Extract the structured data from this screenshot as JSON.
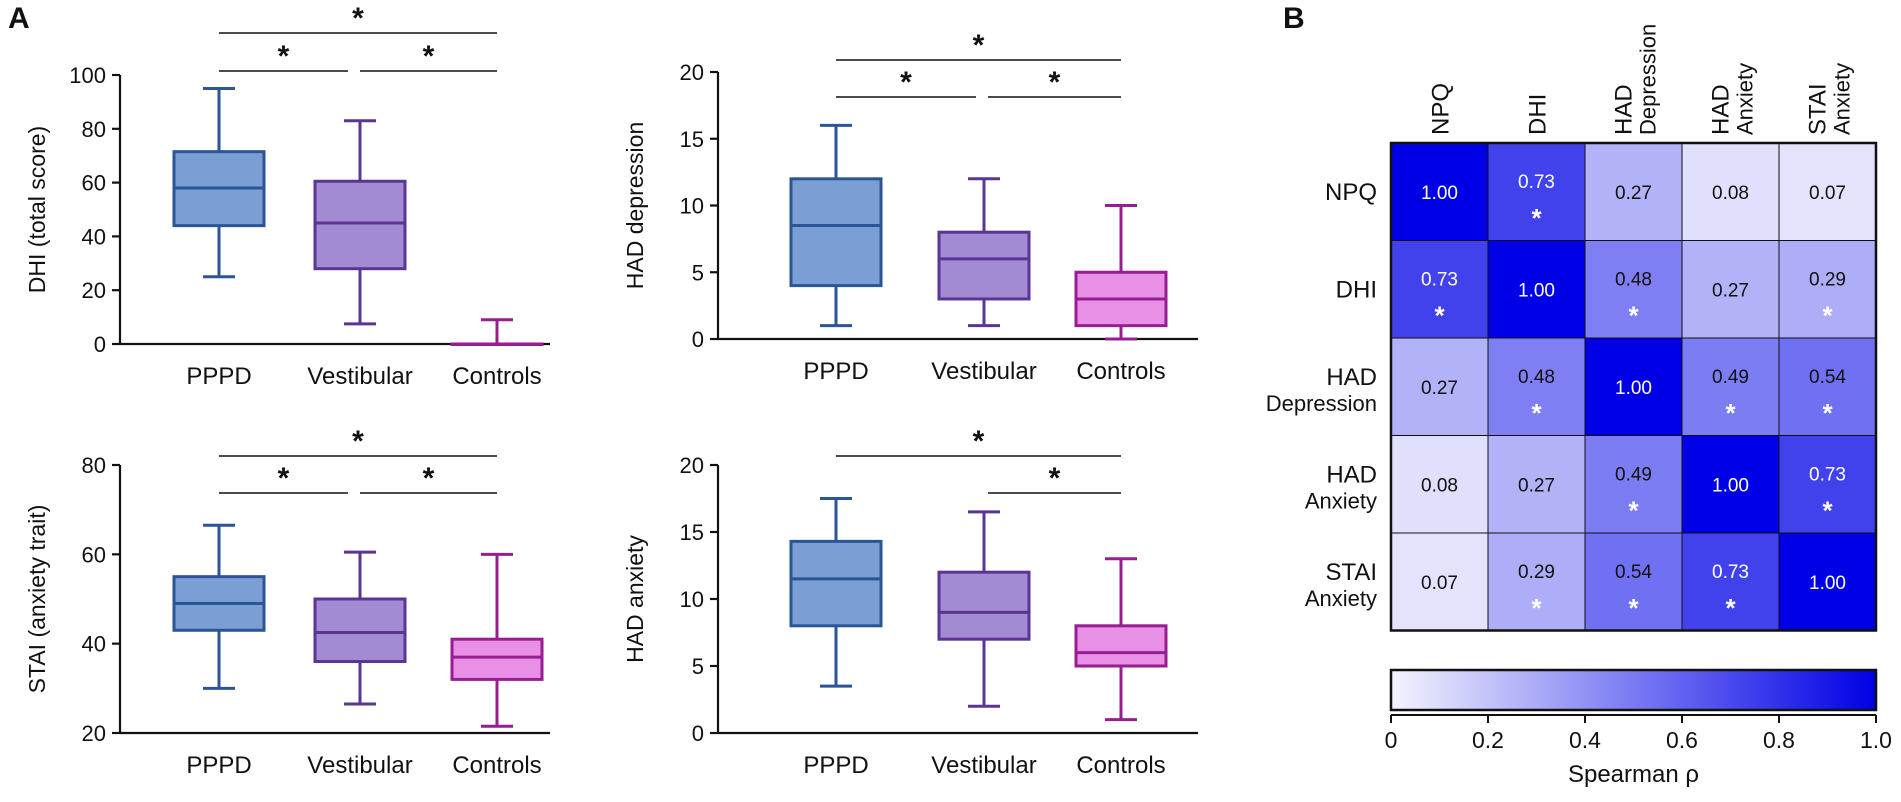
{
  "panel_labels": {
    "a": "A",
    "b": "B"
  },
  "colors": {
    "PPPD": {
      "fill": "#7b9fd4",
      "stroke": "#2b5596"
    },
    "Vestibular": {
      "fill": "#a28bd3",
      "stroke": "#5a3594"
    },
    "Controls": {
      "fill": "#e890e6",
      "stroke": "#971e92"
    },
    "heat_low": "#f4f4ff",
    "heat_high": "#0000e6"
  },
  "chart_data": [
    {
      "id": "dhi",
      "type": "box",
      "title": "",
      "xlabel": "",
      "ylabel": "DHI (total score)",
      "ylim": [
        0,
        100
      ],
      "yticks": [
        0,
        20,
        40,
        60,
        80,
        100
      ],
      "tick_labels": [
        "0",
        "20",
        "40",
        "60",
        "80",
        "100"
      ],
      "categories": [
        "PPPD",
        "Vestibular",
        "Controls"
      ],
      "boxes": [
        {
          "min": 25,
          "q1": 44,
          "median": 58,
          "q3": 71.5,
          "max": 95
        },
        {
          "min": 7.5,
          "q1": 28,
          "median": 45,
          "q3": 60.5,
          "max": 83
        },
        {
          "min": 0,
          "q1": 0,
          "median": 0,
          "q3": 0,
          "max": 9
        }
      ],
      "significance": [
        {
          "from": 0,
          "to": 1,
          "level": 1,
          "label": "*"
        },
        {
          "from": 1,
          "to": 2,
          "level": 1,
          "label": "*"
        },
        {
          "from": 0,
          "to": 2,
          "level": 2,
          "label": "*"
        }
      ]
    },
    {
      "id": "had_dep",
      "type": "box",
      "title": "",
      "xlabel": "",
      "ylabel": "HAD depression",
      "ylim": [
        0,
        20
      ],
      "yticks": [
        0,
        5,
        10,
        15,
        20
      ],
      "tick_labels": [
        "0",
        "5",
        "10",
        "15",
        "20"
      ],
      "categories": [
        "PPPD",
        "Vestibular",
        "Controls"
      ],
      "boxes": [
        {
          "min": 1,
          "q1": 4,
          "median": 8.5,
          "q3": 12,
          "max": 16
        },
        {
          "min": 1,
          "q1": 3,
          "median": 6,
          "q3": 8,
          "max": 12
        },
        {
          "min": 0,
          "q1": 1,
          "median": 3,
          "q3": 5,
          "max": 10
        }
      ],
      "significance": [
        {
          "from": 0,
          "to": 1,
          "level": 1,
          "label": "*"
        },
        {
          "from": 1,
          "to": 2,
          "level": 1,
          "label": "*"
        },
        {
          "from": 0,
          "to": 2,
          "level": 2,
          "label": "*"
        }
      ]
    },
    {
      "id": "stai",
      "type": "box",
      "title": "",
      "xlabel": "",
      "ylabel": "STAI (anxiety trait)",
      "ylim": [
        20,
        80
      ],
      "yticks": [
        20,
        40,
        60,
        80
      ],
      "tick_labels": [
        "20",
        "40",
        "60",
        "80"
      ],
      "categories": [
        "PPPD",
        "Vestibular",
        "Controls"
      ],
      "boxes": [
        {
          "min": 30,
          "q1": 43,
          "median": 49,
          "q3": 55,
          "max": 66.5
        },
        {
          "min": 26.5,
          "q1": 36,
          "median": 42.5,
          "q3": 50,
          "max": 60.5
        },
        {
          "min": 21.5,
          "q1": 32,
          "median": 37,
          "q3": 41,
          "max": 60
        }
      ],
      "significance": [
        {
          "from": 0,
          "to": 1,
          "level": 1,
          "label": "*"
        },
        {
          "from": 1,
          "to": 2,
          "level": 1,
          "label": "*"
        },
        {
          "from": 0,
          "to": 2,
          "level": 2,
          "label": "*"
        }
      ]
    },
    {
      "id": "had_anx",
      "type": "box",
      "title": "",
      "xlabel": "",
      "ylabel": "HAD anxiety",
      "ylim": [
        0,
        20
      ],
      "yticks": [
        0,
        5,
        10,
        15,
        20
      ],
      "tick_labels": [
        "0",
        "5",
        "10",
        "15",
        "20"
      ],
      "categories": [
        "PPPD",
        "Vestibular",
        "Controls"
      ],
      "boxes": [
        {
          "min": 3.5,
          "q1": 8,
          "median": 11.5,
          "q3": 14.3,
          "max": 17.5
        },
        {
          "min": 2,
          "q1": 7,
          "median": 9,
          "q3": 12,
          "max": 16.5
        },
        {
          "min": 1,
          "q1": 5,
          "median": 6,
          "q3": 8,
          "max": 13
        }
      ],
      "significance": [
        {
          "from": 1,
          "to": 2,
          "level": 1,
          "label": "*"
        },
        {
          "from": 0,
          "to": 2,
          "level": 2,
          "label": "*"
        }
      ]
    },
    {
      "id": "corr",
      "type": "heatmap",
      "title": "",
      "row_labels": [
        [
          "NPQ"
        ],
        [
          "DHI"
        ],
        [
          "HAD",
          "Depression"
        ],
        [
          "HAD",
          "Anxiety"
        ],
        [
          "STAI",
          "Anxiety"
        ]
      ],
      "col_labels": [
        [
          "NPQ"
        ],
        [
          "DHI"
        ],
        [
          "HAD",
          "Depression"
        ],
        [
          "HAD",
          "Anxiety"
        ],
        [
          "STAI",
          "Anxiety"
        ]
      ],
      "values": [
        [
          1.0,
          0.73,
          0.27,
          0.08,
          0.07
        ],
        [
          0.73,
          1.0,
          0.48,
          0.27,
          0.29
        ],
        [
          0.27,
          0.48,
          1.0,
          0.49,
          0.54
        ],
        [
          0.08,
          0.27,
          0.49,
          1.0,
          0.73
        ],
        [
          0.07,
          0.29,
          0.54,
          0.73,
          1.0
        ]
      ],
      "value_labels": [
        [
          "1.00",
          "0.73",
          "0.27",
          "0.08",
          "0.07"
        ],
        [
          "0.73",
          "1.00",
          "0.48",
          "0.27",
          "0.29"
        ],
        [
          "0.27",
          "0.48",
          "1.00",
          "0.49",
          "0.54"
        ],
        [
          "0.08",
          "0.27",
          "0.49",
          "1.00",
          "0.73"
        ],
        [
          "0.07",
          "0.29",
          "0.54",
          "0.73",
          "1.00"
        ]
      ],
      "significant": [
        [
          false,
          true,
          false,
          false,
          false
        ],
        [
          true,
          false,
          true,
          false,
          true
        ],
        [
          false,
          true,
          false,
          true,
          true
        ],
        [
          false,
          false,
          true,
          false,
          true
        ],
        [
          false,
          true,
          true,
          true,
          false
        ]
      ],
      "star_label": "*",
      "colorbar": {
        "range": [
          0,
          1
        ],
        "ticks": [
          0,
          0.2,
          0.4,
          0.6,
          0.8,
          1.0
        ],
        "tick_labels": [
          "0",
          "0.2",
          "0.4",
          "0.6",
          "0.8",
          "1.0"
        ],
        "label": "Spearman ρ"
      }
    }
  ]
}
